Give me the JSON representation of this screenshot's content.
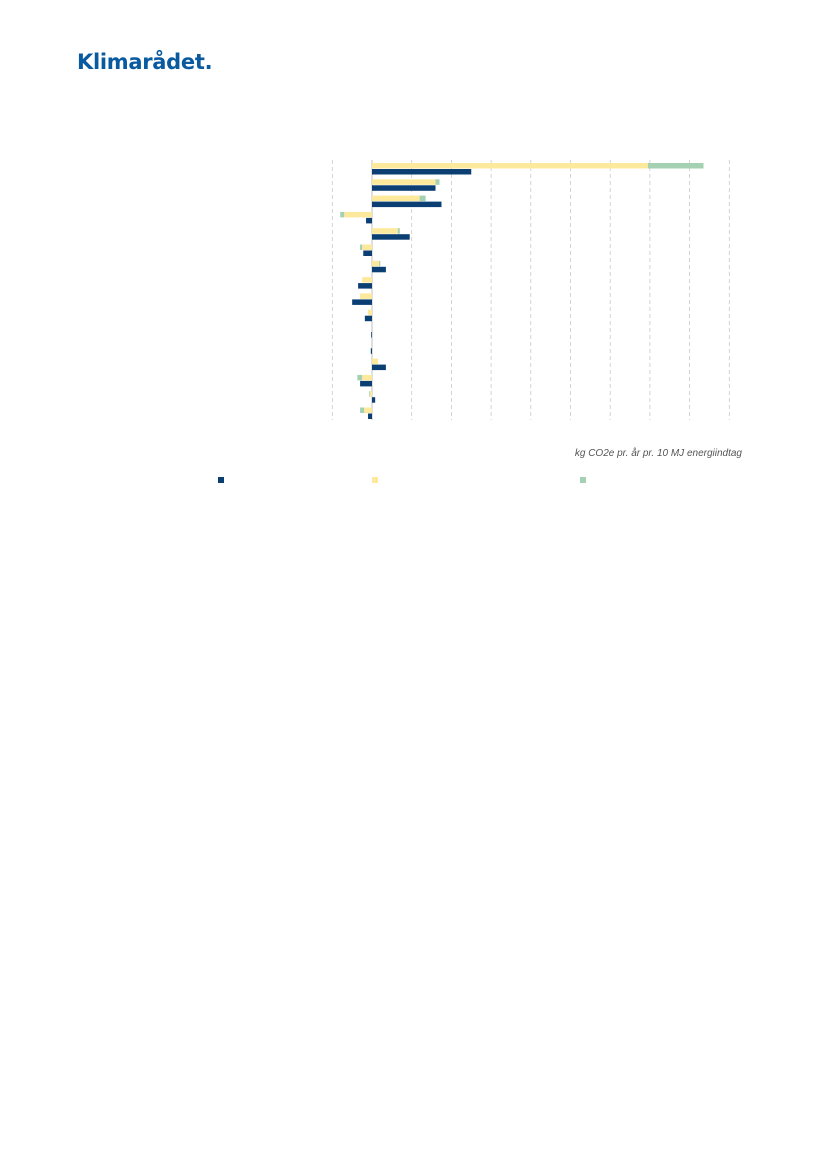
{
  "header": {
    "logo_text": "Klimarådet."
  },
  "colors": {
    "navy": "#0b3f73",
    "yellow": "#fde99c",
    "green": "#a3d1b2",
    "grid": "#c8c8c8",
    "logo": "#0a5aa0"
  },
  "chart_data": {
    "type": "bar",
    "orientation": "horizontal",
    "stacked": true,
    "xlabel": "kg CO2e pr. år pr. 10 MJ energiindtag",
    "xlim": [
      -1.4,
      9.0
    ],
    "grid": "vertical dashed",
    "legend_position": "bottom",
    "groups": [
      {
        "navy": 2.5,
        "yellow": 6.95,
        "green": 1.4
      },
      {
        "navy": 1.6,
        "yellow": 1.6,
        "green": 0.1
      },
      {
        "navy": 1.75,
        "yellow": 1.2,
        "green": 0.15
      },
      {
        "navy": -0.15,
        "yellow": -0.7,
        "green": -0.1
      },
      {
        "navy": 0.95,
        "yellow": 0.65,
        "green": 0.05
      },
      {
        "navy": -0.22,
        "yellow": -0.25,
        "green": -0.05
      },
      {
        "navy": 0.35,
        "yellow": 0.18,
        "green": 0.03
      },
      {
        "navy": -0.35,
        "yellow": -0.25,
        "green": 0.0
      },
      {
        "navy": -0.5,
        "yellow": -0.3,
        "green": 0.0
      },
      {
        "navy": -0.18,
        "yellow": -0.1,
        "green": 0.0
      },
      {
        "navy": -0.02,
        "yellow": 0.0,
        "green": 0.0
      },
      {
        "navy": -0.03,
        "yellow": 0.0,
        "green": 0.0
      },
      {
        "navy": 0.35,
        "yellow": 0.15,
        "green": 0.0
      },
      {
        "navy": -0.3,
        "yellow": -0.25,
        "green": -0.12
      },
      {
        "navy": 0.08,
        "yellow": -0.05,
        "green": -0.02
      },
      {
        "navy": -0.1,
        "yellow": -0.2,
        "green": -0.1
      }
    ]
  }
}
